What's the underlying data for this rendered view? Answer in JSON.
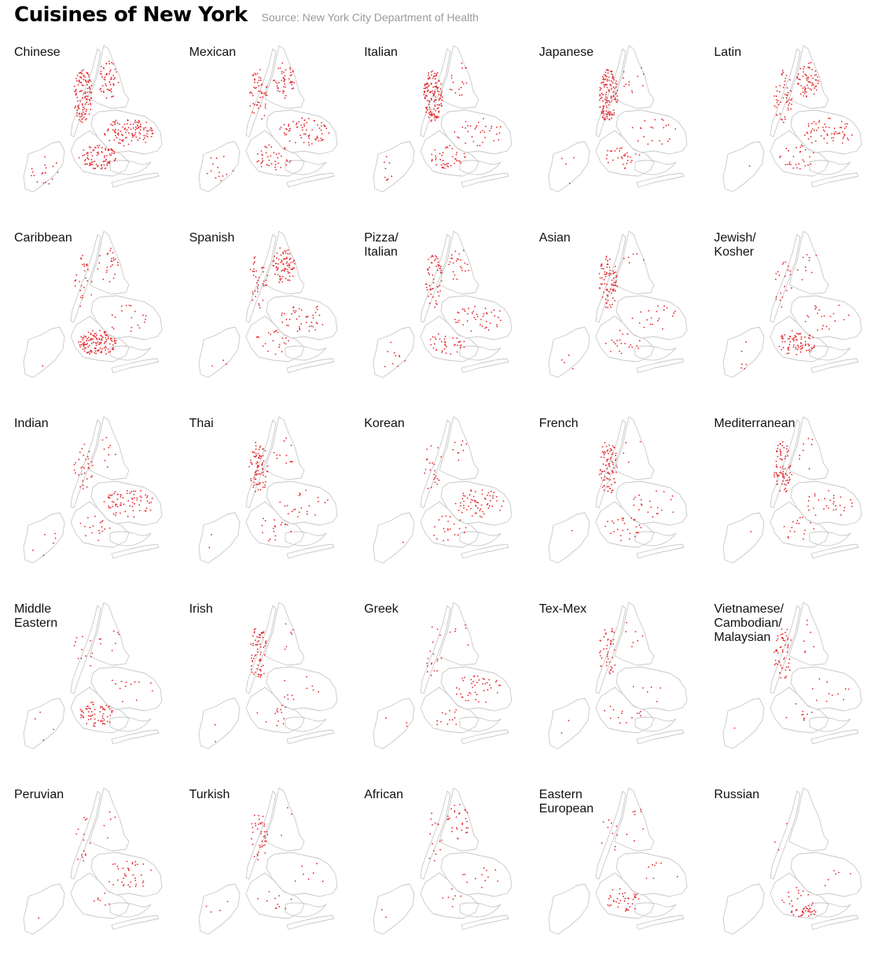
{
  "title": "Cuisines of New York",
  "source": "Source: New York City Department of Health",
  "accent_color": "#e3262b",
  "outline_color": "#c8c8c8",
  "panels": [
    {
      "label": "Chinese",
      "density": 1.0,
      "focus": "spread"
    },
    {
      "label": "Mexican",
      "density": 0.55,
      "focus": "queens-bronx"
    },
    {
      "label": "Italian",
      "density": 0.6,
      "focus": "manhattan"
    },
    {
      "label": "Japanese",
      "density": 0.5,
      "focus": "manhattan"
    },
    {
      "label": "Latin",
      "density": 0.5,
      "focus": "bronx-queens"
    },
    {
      "label": "Caribbean",
      "density": 0.5,
      "focus": "brooklyn"
    },
    {
      "label": "Spanish",
      "density": 0.45,
      "focus": "bronx-queens"
    },
    {
      "label": "Pizza/\nItalian",
      "density": 0.4,
      "focus": "spread"
    },
    {
      "label": "Asian",
      "density": 0.3,
      "focus": "manhattan"
    },
    {
      "label": "Jewish/\nKosher",
      "density": 0.3,
      "focus": "brooklyn"
    },
    {
      "label": "Indian",
      "density": 0.3,
      "focus": "queens"
    },
    {
      "label": "Thai",
      "density": 0.3,
      "focus": "manhattan"
    },
    {
      "label": "Korean",
      "density": 0.25,
      "focus": "queens"
    },
    {
      "label": "French",
      "density": 0.3,
      "focus": "manhattan"
    },
    {
      "label": "Mediterranean",
      "density": 0.3,
      "focus": "manhattan"
    },
    {
      "label": "Middle\nEastern",
      "density": 0.2,
      "focus": "brooklyn"
    },
    {
      "label": "Irish",
      "density": 0.2,
      "focus": "manhattan"
    },
    {
      "label": "Greek",
      "density": 0.15,
      "focus": "queens"
    },
    {
      "label": "Tex-Mex",
      "density": 0.12,
      "focus": "manhattan"
    },
    {
      "label": "Vietnamese/\nCambodian/\nMalaysian",
      "density": 0.15,
      "focus": "manhattan"
    },
    {
      "label": "Peruvian",
      "density": 0.1,
      "focus": "queens"
    },
    {
      "label": "Turkish",
      "density": 0.1,
      "focus": "manhattan"
    },
    {
      "label": "African",
      "density": 0.1,
      "focus": "bronx"
    },
    {
      "label": "Eastern\nEuropean",
      "density": 0.1,
      "focus": "brooklyn"
    },
    {
      "label": "Russian",
      "density": 0.08,
      "focus": "brooklyn-south"
    }
  ]
}
